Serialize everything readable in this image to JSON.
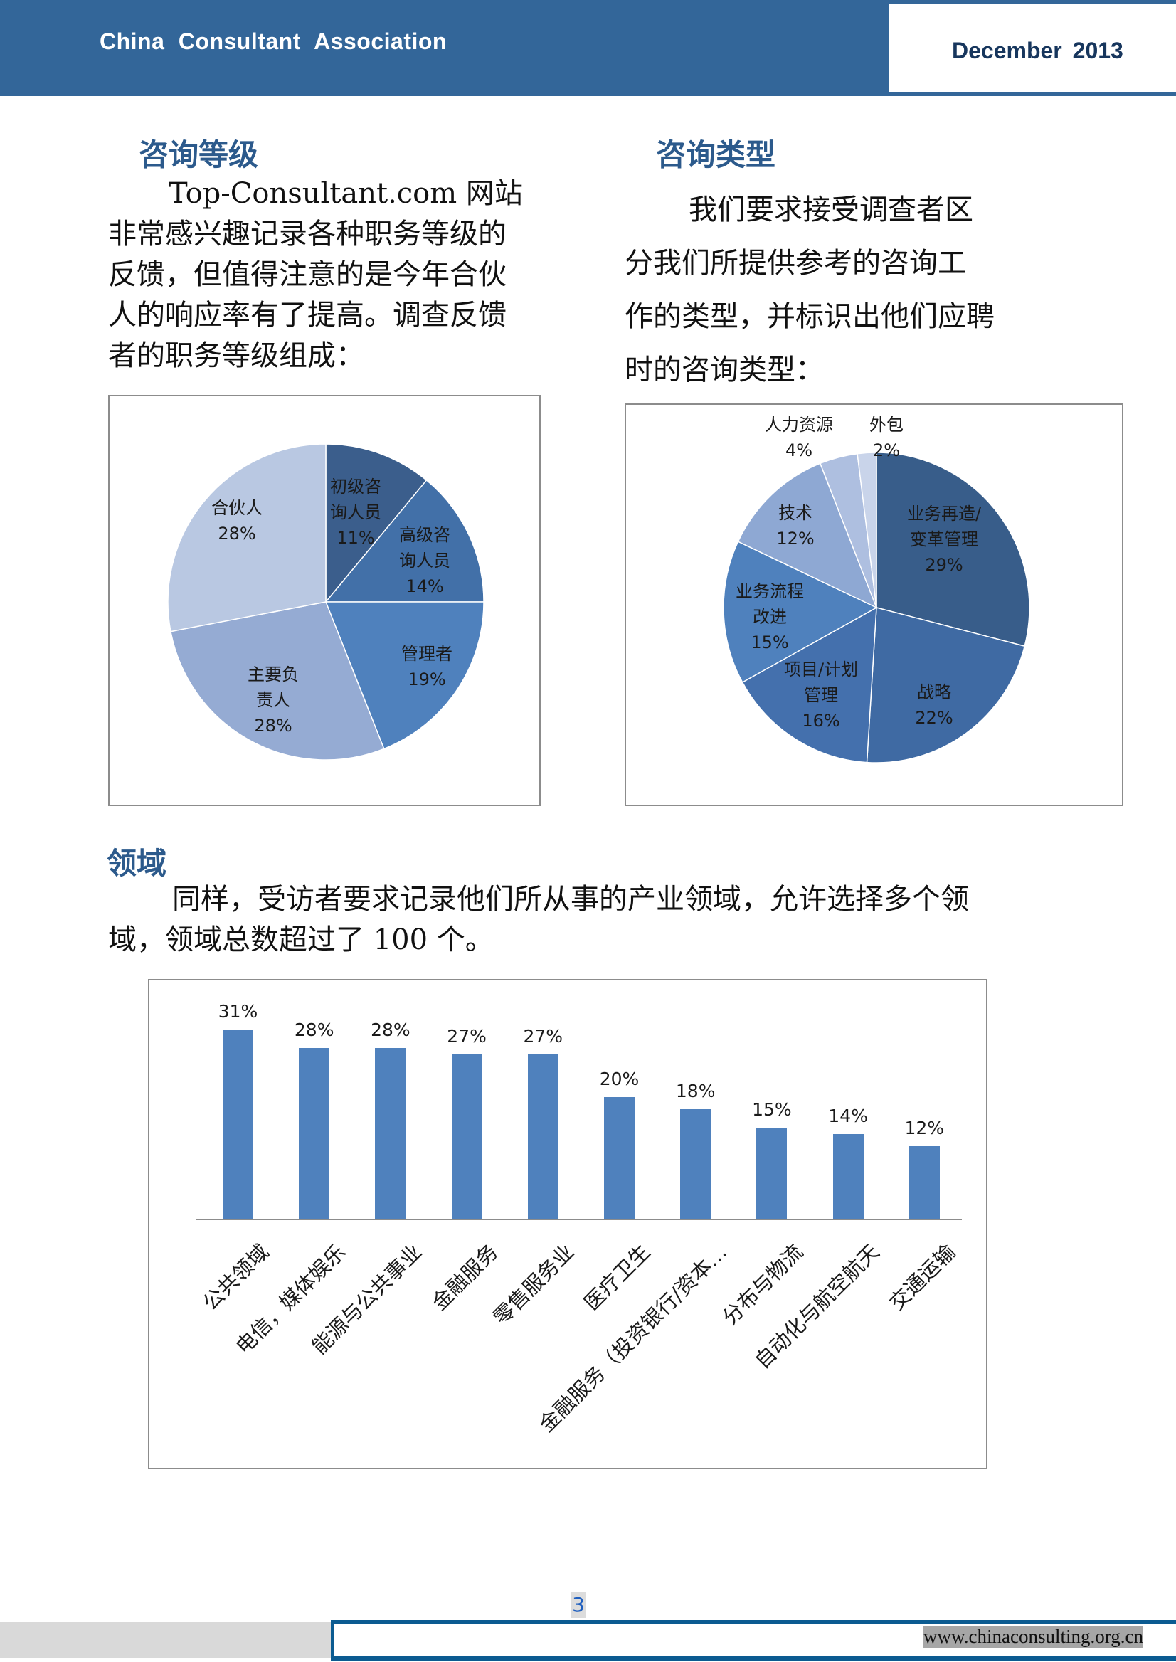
{
  "header": {
    "title": "China Consultant Association",
    "date": "December 2013"
  },
  "sections": {
    "level": {
      "heading": "咨询等级",
      "lines": [
        "Top-Consultant.com 网站",
        "非常感兴趣记录各种职务等级的",
        "反馈，但值得注意的是今年合伙",
        "人的响应率有了提高。调查反馈",
        "者的职务等级组成："
      ]
    },
    "type": {
      "heading": "咨询类型",
      "lines": [
        "我们要求接受调查者区",
        "分我们所提供参考的咨询工",
        "作的类型，并标识出他们应聘",
        "时的咨询类型："
      ]
    },
    "domain": {
      "heading": "领域",
      "lines": [
        "同样，受访者要求记录他们所从事的产业领域，允许选择多个领",
        "域，领域总数超过了 100 个。"
      ]
    }
  },
  "chart_data": [
    {
      "type": "pie",
      "title": "咨询等级",
      "categories": [
        "初级咨询人员",
        "高级咨询人员",
        "管理者",
        "主要负责人",
        "合伙人"
      ],
      "values": [
        11,
        14,
        19,
        28,
        28
      ],
      "labels": [
        {
          "lines": [
            "初级咨",
            "询人员"
          ],
          "pct": "11%"
        },
        {
          "lines": [
            "高级咨",
            "询人员"
          ],
          "pct": "14%"
        },
        {
          "lines": [
            "管理者"
          ],
          "pct": "19%"
        },
        {
          "lines": [
            "主要负",
            "责人"
          ],
          "pct": "28%"
        },
        {
          "lines": [
            "合伙人"
          ],
          "pct": "28%"
        }
      ],
      "colors": [
        "#3b5e8c",
        "#4270a8",
        "#4f81bd",
        "#95abd3",
        "#b9c8e2"
      ],
      "legend": "none"
    },
    {
      "type": "pie",
      "title": "咨询类型",
      "categories": [
        "业务再造/变革管理",
        "战略",
        "项目/计划管理",
        "业务流程改进",
        "技术",
        "人力资源",
        "外包"
      ],
      "values": [
        29,
        22,
        16,
        15,
        12,
        4,
        2
      ],
      "labels": [
        {
          "lines": [
            "业务再造/",
            "变革管理"
          ],
          "pct": "29%"
        },
        {
          "lines": [
            "战略"
          ],
          "pct": "22%"
        },
        {
          "lines": [
            "项目/计划",
            "管理"
          ],
          "pct": "16%"
        },
        {
          "lines": [
            "业务流程",
            "改进"
          ],
          "pct": "15%"
        },
        {
          "lines": [
            "技术"
          ],
          "pct": "12%"
        },
        {
          "lines": [
            "人力资源"
          ],
          "pct": "4%"
        },
        {
          "lines": [
            "外包"
          ],
          "pct": "2%"
        }
      ],
      "colors": [
        "#385d8a",
        "#3f6aa3",
        "#4470ad",
        "#4f81bd",
        "#8ea8d3",
        "#aebfe0",
        "#c9d4ea"
      ],
      "legend": "none"
    },
    {
      "type": "bar",
      "title": "领域",
      "categories": [
        "公共领域",
        "电信，媒体娱乐",
        "能源与公共事业",
        "金融服务",
        "零售服务业",
        "医疗卫生",
        "金融服务（投资银行/资本…",
        "分布与物流",
        "自动化与航空航天",
        "交通运输"
      ],
      "values": [
        31,
        28,
        28,
        27,
        27,
        20,
        18,
        15,
        14,
        12
      ],
      "value_labels": [
        "31%",
        "28%",
        "28%",
        "27%",
        "27%",
        "20%",
        "18%",
        "15%",
        "14%",
        "12%"
      ],
      "xlabel": "",
      "ylabel": "",
      "ylim": [
        0,
        35
      ],
      "grid": false,
      "bar_color": "#4f81bd"
    }
  ],
  "footer": {
    "page_number": "3",
    "url": "www.chinaconsulting.org.cn"
  }
}
